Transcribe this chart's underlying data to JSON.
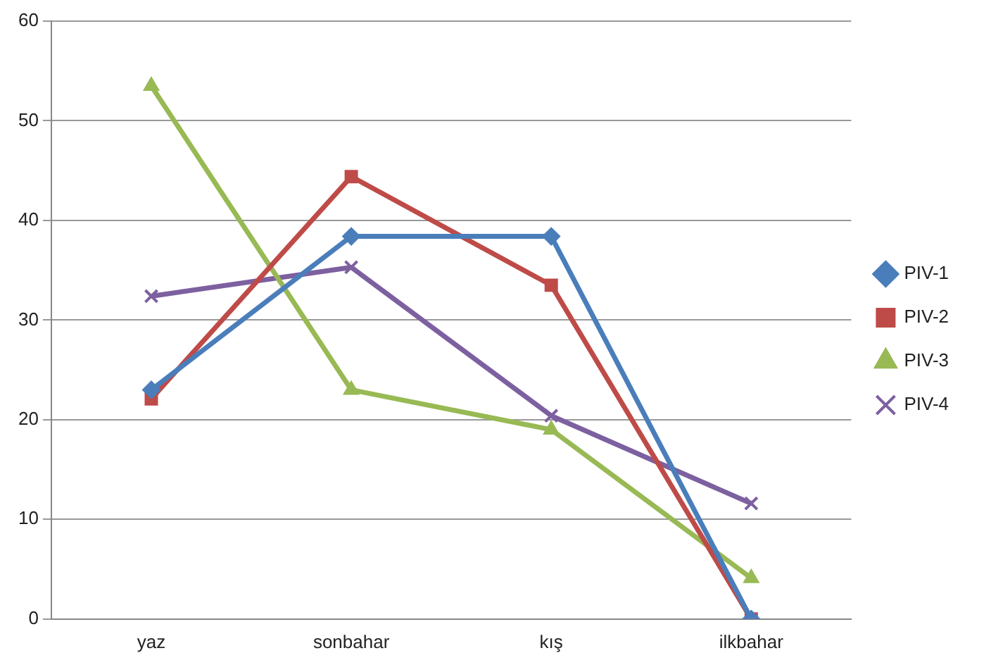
{
  "chart_data": {
    "type": "line",
    "categories": [
      "yaz",
      "sonbahar",
      "kış",
      "ilkbahar"
    ],
    "series": [
      {
        "name": "PIV-1",
        "color": "#4a7ebb",
        "marker": "diamond",
        "values": [
          23,
          38.4,
          38.4,
          0
        ]
      },
      {
        "name": "PIV-2",
        "color": "#be4b48",
        "marker": "square",
        "values": [
          22.1,
          44.4,
          33.5,
          0
        ]
      },
      {
        "name": "PIV-3",
        "color": "#98b954",
        "marker": "triangle",
        "values": [
          53.5,
          23,
          19,
          4.1
        ]
      },
      {
        "name": "PIV-4",
        "color": "#7d60a0",
        "marker": "cross",
        "values": [
          32.4,
          35.3,
          20.4,
          11.6
        ]
      }
    ],
    "ylim": [
      0,
      60
    ],
    "yticks": [
      0,
      10,
      20,
      30,
      40,
      50,
      60
    ],
    "grid": "y",
    "legend": "right",
    "line_style": "solid"
  }
}
